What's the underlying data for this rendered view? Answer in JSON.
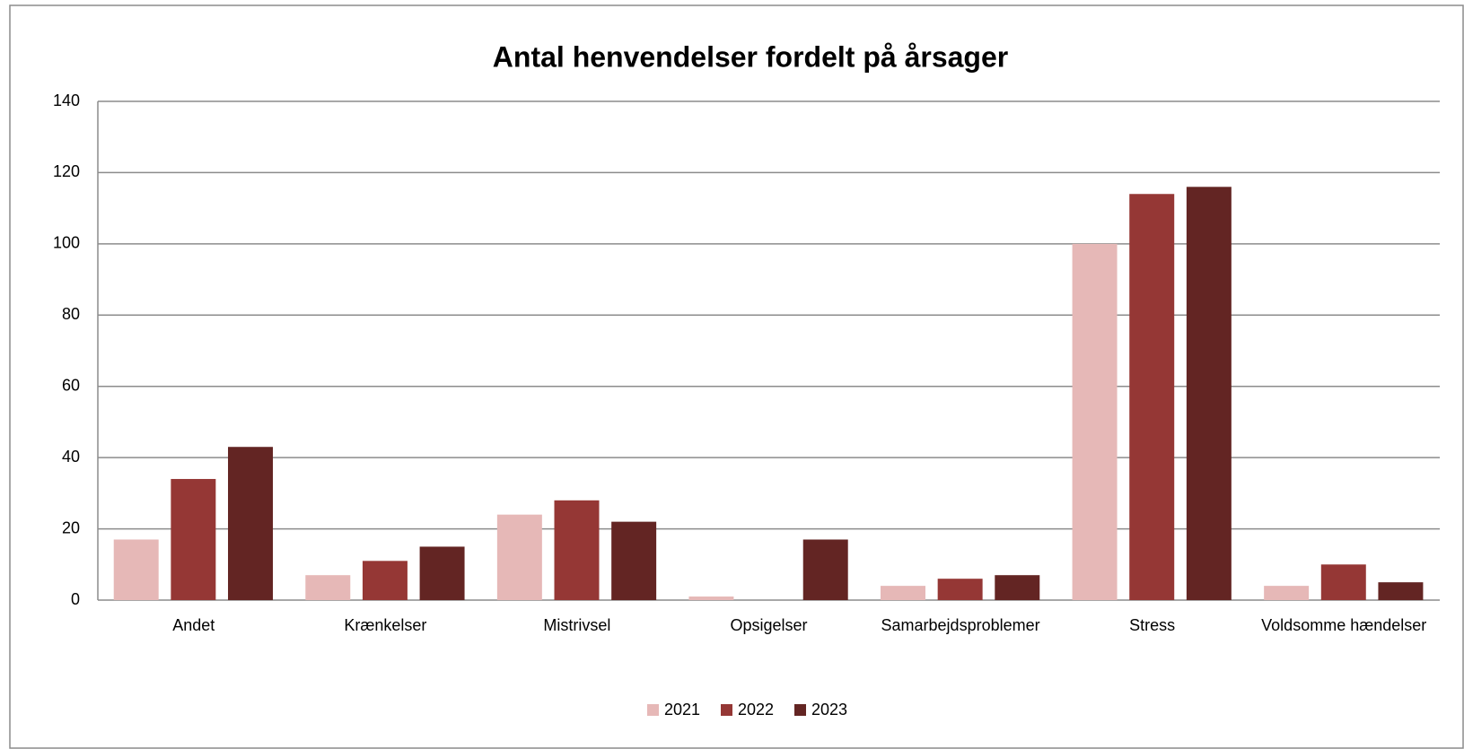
{
  "chart_data": {
    "type": "bar",
    "title": "Antal henvendelser fordelt på årsager",
    "categories": [
      "Andet",
      "Krænkelser",
      "Mistrivsel",
      "Opsigelser",
      "Samarbejdsproblemer",
      "Stress",
      "Voldsomme hændelser"
    ],
    "series": [
      {
        "name": "2021",
        "color": "#e6b8b7",
        "values": [
          17,
          7,
          24,
          1,
          4,
          100,
          4
        ]
      },
      {
        "name": "2022",
        "color": "#953735",
        "values": [
          34,
          11,
          28,
          0,
          6,
          114,
          10
        ]
      },
      {
        "name": "2023",
        "color": "#632523",
        "values": [
          43,
          15,
          22,
          17,
          7,
          116,
          5
        ]
      }
    ],
    "ylim": [
      0,
      140
    ],
    "yticks": [
      0,
      20,
      40,
      60,
      80,
      100,
      120,
      140
    ],
    "grid": true,
    "legend": "bottom"
  }
}
